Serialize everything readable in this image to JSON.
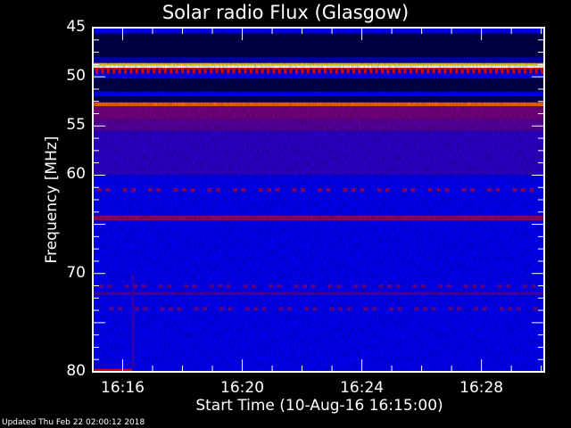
{
  "chart_data": {
    "type": "heatmap",
    "title": "Solar radio Flux (Glasgow)",
    "xlabel": "Start Time (10-Aug-16 16:15:00)",
    "ylabel": "Frequency [MHz]",
    "x_ticks": [
      "16:16",
      "16:20",
      "16:24",
      "16:28"
    ],
    "x_tick_minutes": [
      1,
      5,
      9,
      13
    ],
    "xlim_minutes_after_start": [
      0,
      15.1
    ],
    "y_ticks": [
      45,
      50,
      55,
      60,
      70,
      80
    ],
    "ylim": [
      45,
      80
    ],
    "colormap": [
      "#000000",
      "#000050",
      "#0000ff",
      "#700090",
      "#ff0000",
      "#ffd000",
      "#ffffff"
    ],
    "bands": [
      {
        "from": 45.0,
        "to": 45.6,
        "level": 0.5
      },
      {
        "from": 45.6,
        "to": 48.0,
        "level": 0.28
      },
      {
        "from": 48.0,
        "to": 48.6,
        "level": 0.42
      },
      {
        "from": 48.6,
        "to": 48.85,
        "level": 0.9
      },
      {
        "from": 48.85,
        "to": 49.1,
        "level": 1.0
      },
      {
        "from": 49.1,
        "to": 49.25,
        "level": 0.8
      },
      {
        "from": 49.25,
        "to": 49.6,
        "level": 0.45
      },
      {
        "from": 49.6,
        "to": 50.2,
        "level": 0.5
      },
      {
        "from": 50.2,
        "to": 51.5,
        "level": 0.3
      },
      {
        "from": 51.5,
        "to": 52.0,
        "level": 0.5
      },
      {
        "from": 52.0,
        "to": 52.6,
        "level": 0.3
      },
      {
        "from": 52.6,
        "to": 53.0,
        "level": 0.85
      },
      {
        "from": 53.0,
        "to": 54.3,
        "level": 0.66
      },
      {
        "from": 54.3,
        "to": 55.5,
        "level": 0.62
      },
      {
        "from": 55.5,
        "to": 60.0,
        "level": 0.56
      },
      {
        "from": 60.0,
        "to": 64.1,
        "level": 0.5
      },
      {
        "from": 64.1,
        "to": 64.6,
        "level": 0.7
      },
      {
        "from": 64.6,
        "to": 80.0,
        "level": 0.5
      },
      {
        "from": 71.9,
        "to": 72.2,
        "level": 0.6
      },
      {
        "from": 79.7,
        "to": 80.0,
        "level": 0.8,
        "time_to_minutes": 1.3
      }
    ],
    "periodic_bursts": [
      {
        "freq": 49.4,
        "level": 0.8
      },
      {
        "freq": 61.5,
        "level": 0.68
      },
      {
        "freq": 71.3,
        "level": 0.64
      },
      {
        "freq": 73.6,
        "level": 0.64
      }
    ]
  },
  "footer": {
    "updated": "Updated Thu Feb 22 02:00:12 2018"
  }
}
